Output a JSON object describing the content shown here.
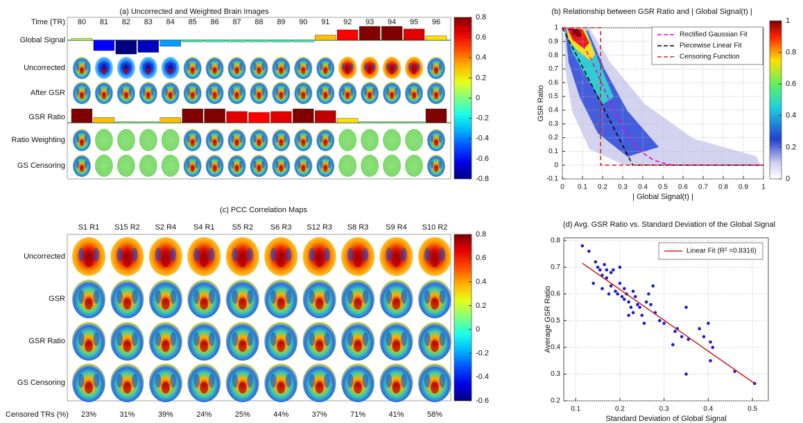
{
  "chart_data": [
    {
      "type": "image-grid",
      "title": "(a) Uncorrected and Weighted Brain Images",
      "column_header": "Time (TR)",
      "columns": [
        80,
        81,
        82,
        83,
        84,
        85,
        86,
        87,
        88,
        89,
        90,
        91,
        92,
        93,
        94,
        95,
        96
      ],
      "rows": [
        "Uncorrected",
        "After GSR",
        "Ratio Weighting",
        "GS Censoring"
      ],
      "series": [
        {
          "name": "Global Signal",
          "values": [
            0.1,
            -0.6,
            -0.8,
            -0.7,
            -0.35,
            -0.1,
            -0.1,
            -0.1,
            -0.1,
            -0.1,
            -0.1,
            0.3,
            0.6,
            0.8,
            0.8,
            0.65,
            0.25
          ]
        },
        {
          "name": "GSR Ratio",
          "values": [
            0.8,
            0.3,
            0,
            0,
            0.3,
            0.8,
            0.8,
            0.65,
            0.6,
            0.65,
            0.8,
            0.7,
            0.25,
            0,
            0,
            0,
            0.8
          ]
        }
      ],
      "colorbar": {
        "lim": [
          -0.8,
          0.8
        ],
        "ticks": [
          0.8,
          0.6,
          0.4,
          0.2,
          0,
          -0.2,
          -0.4,
          -0.6,
          -0.8
        ]
      }
    },
    {
      "type": "scatter",
      "title": "(b) Relationship between GSR Ratio and  | Global Signal(t) |",
      "xlabel": "| Global Signal(t) |",
      "ylabel": "GSR Ratio",
      "xlim": [
        0,
        1
      ],
      "ylim": [
        -0.1,
        1
      ],
      "xticks": [
        0,
        0.1,
        0.2,
        0.3,
        0.4,
        0.5,
        0.6,
        0.7,
        0.8,
        0.9,
        1
      ],
      "yticks": [
        -0.1,
        0,
        0.1,
        0.2,
        0.3,
        0.4,
        0.5,
        0.6,
        0.7,
        0.8,
        0.9,
        1
      ],
      "grid": true,
      "legend": "upper right",
      "series": [
        {
          "name": "Rectified Gaussian Fit",
          "color": "#e000e0",
          "style": "dashed",
          "x": [
            0,
            0.05,
            0.1,
            0.15,
            0.2,
            0.25,
            0.3,
            0.35,
            0.4,
            0.45,
            0.5,
            0.55,
            0.6,
            1
          ],
          "y": [
            1,
            0.97,
            0.88,
            0.75,
            0.58,
            0.42,
            0.28,
            0.17,
            0.09,
            0.04,
            0.015,
            0,
            0,
            0
          ]
        },
        {
          "name": "Piecewise Linear Fit",
          "color": "#000000",
          "style": "dashed",
          "x": [
            0,
            0.35,
            1
          ],
          "y": [
            1,
            0,
            0
          ]
        },
        {
          "name": "Censoring Function",
          "color": "#e02020",
          "style": "dashed",
          "x": [
            0,
            0.19,
            0.19,
            1
          ],
          "y": [
            1,
            1,
            0,
            0
          ]
        }
      ],
      "colorbar": {
        "lim": [
          0,
          1
        ],
        "ticks": [
          0,
          0.2,
          0.4,
          0.6,
          0.8,
          1
        ]
      }
    },
    {
      "type": "image-grid",
      "title": "(c) PCC Correlation Maps",
      "columns": [
        "S1 R1",
        "S15 R2",
        "S2 R4",
        "S4 R1",
        "S5 R2",
        "S6 R3",
        "S12 R3",
        "S8 R3",
        "S9 R4",
        "S10 R2"
      ],
      "rows": [
        "Uncorrected",
        "GSR",
        "GSR Ratio",
        "GS Censoring"
      ],
      "footer": {
        "label": "Censored TRs (%)",
        "values": [
          23,
          31,
          39,
          24,
          25,
          44,
          37,
          71,
          41,
          58
        ],
        "value_labels": [
          "23%",
          "31%",
          "39%",
          "24%",
          "25%",
          "44%",
          "37%",
          "71%",
          "41%",
          "58%"
        ]
      },
      "colorbar": {
        "lim": [
          -0.6,
          0.8
        ],
        "ticks": [
          0.8,
          0.6,
          0.4,
          0.2,
          0,
          -0.2,
          -0.4,
          -0.6
        ]
      }
    },
    {
      "type": "scatter",
      "title": "(d) Avg. GSR Ratio vs. Standard Deviation of the Global Signal",
      "xlabel": "Standard Deviation of Global Signal",
      "ylabel": "Average GSR Ratio",
      "xlim": [
        0.073,
        0.536
      ],
      "ylim": [
        0.2,
        0.81
      ],
      "xticks": [
        0.1,
        0.2,
        0.3,
        0.4,
        0.5
      ],
      "yticks": [
        0.2,
        0.3,
        0.4,
        0.5,
        0.6,
        0.7,
        0.8
      ],
      "grid": true,
      "legend": "upper right",
      "series": [
        {
          "color": "#1a1ad0",
          "style": "markers",
          "x": [
            0.115,
            0.13,
            0.14,
            0.145,
            0.15,
            0.155,
            0.16,
            0.16,
            0.165,
            0.17,
            0.17,
            0.175,
            0.18,
            0.18,
            0.185,
            0.19,
            0.195,
            0.2,
            0.2,
            0.205,
            0.21,
            0.21,
            0.215,
            0.22,
            0.22,
            0.225,
            0.23,
            0.23,
            0.235,
            0.24,
            0.245,
            0.25,
            0.255,
            0.26,
            0.265,
            0.27,
            0.275,
            0.28,
            0.29,
            0.3,
            0.32,
            0.325,
            0.33,
            0.34,
            0.35,
            0.35,
            0.355,
            0.38,
            0.39,
            0.4,
            0.405,
            0.405,
            0.41,
            0.46,
            0.505
          ],
          "y": [
            0.78,
            0.76,
            0.64,
            0.72,
            0.7,
            0.69,
            0.67,
            0.62,
            0.71,
            0.69,
            0.66,
            0.6,
            0.68,
            0.63,
            0.69,
            0.61,
            0.6,
            0.7,
            0.64,
            0.59,
            0.62,
            0.58,
            0.6,
            0.57,
            0.52,
            0.55,
            0.61,
            0.53,
            0.59,
            0.56,
            0.55,
            0.52,
            0.49,
            0.57,
            0.6,
            0.56,
            0.63,
            0.53,
            0.5,
            0.49,
            0.41,
            0.46,
            0.47,
            0.44,
            0.55,
            0.3,
            0.43,
            0.47,
            0.44,
            0.49,
            0.35,
            0.42,
            0.4,
            0.31,
            0.265
          ]
        },
        {
          "name": "Linear Fit (R² =0.8316)",
          "color": "#d02020",
          "style": "solid",
          "x": [
            0.115,
            0.505
          ],
          "y": [
            0.715,
            0.265
          ]
        }
      ]
    }
  ]
}
